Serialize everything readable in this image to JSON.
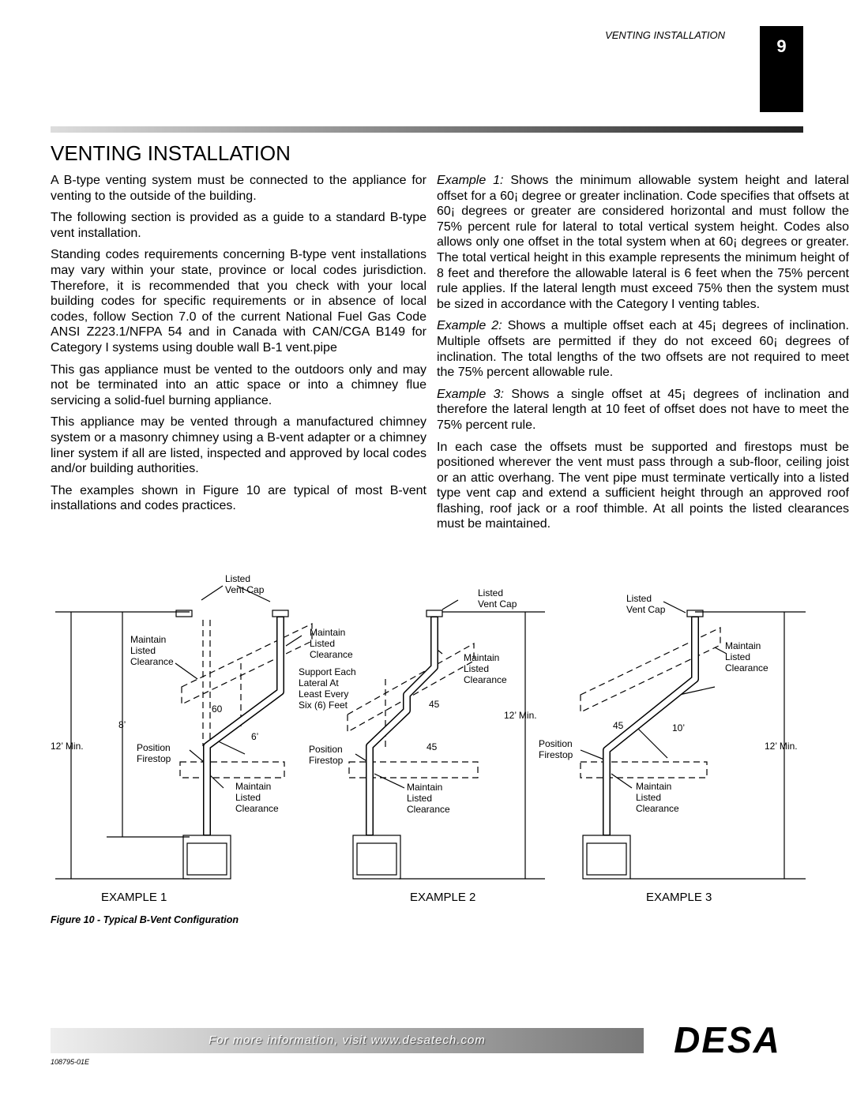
{
  "header": {
    "section": "VENTING INSTALLATION",
    "page_number": "9"
  },
  "title": "VENTING INSTALLATION",
  "left_column": [
    "A B-type venting system must be connected to the appliance for venting to the outside of the building.",
    "The following section is provided as a guide to a standard B-type vent installation.",
    "Standing codes requirements concerning B-type vent installations may vary within your state, province or local codes jurisdiction. Therefore, it is recommended that you check with your local building codes for specific requirements or in absence of local codes, follow Section 7.0 of the current National Fuel Gas Code ANSI Z223.1/NFPA 54 and in Canada with CAN/CGA B149 for Category I systems using double wall B-1 vent.pipe",
    "This gas appliance must be vented to the outdoors only and may not be terminated into an attic space or into a chimney flue servicing a solid-fuel burning appliance.",
    "This appliance may be vented through a manufactured chimney system or a masonry chimney using a B-vent adapter or a chimney liner system if all are listed, inspected and approved by local codes and/or building authorities.",
    "The examples shown in Figure 10 are typical of most B-vent installations and codes practices."
  ],
  "right_column": [
    {
      "lead": "Example 1:",
      "text": "Shows the minimum allowable system height and lateral offset for a 60¡ degree or greater inclination. Code specifies that offsets at 60¡ degrees or greater are considered horizontal and must follow the 75% percent rule for lateral to total vertical system height. Codes also allows only one offset in the total system when at 60¡ degrees or greater. The total vertical height in this example represents the minimum height of 8 feet and therefore the allowable lateral is 6 feet when the 75% percent rule applies. If the lateral length must exceed 75% then the system must be sized in accordance with the Category I venting tables."
    },
    {
      "lead": "Example 2:",
      "text": "Shows a multiple offset each at 45¡ degrees of inclination. Multiple offsets are permitted if they do not exceed 60¡ degrees of inclination. The total lengths of the two offsets are not required to meet the 75% percent allowable rule."
    },
    {
      "lead": "Example 3:",
      "text": "Shows a single offset at 45¡ degrees of inclination and therefore the lateral length at 10 feet of offset does not have to meet the 75% percent rule."
    },
    {
      "text": "In each case the offsets must be supported and firestops must be positioned wherever the vent must pass through a sub-floor, ceiling joist or an attic overhang. The vent pipe must terminate vertically into a listed type vent cap and extend a sufficient height through an approved roof flashing, roof jack or a roof thimble. At all points the listed clearances must be maintained."
    }
  ],
  "figure": {
    "labels": [
      {
        "lines": [
          "Listed",
          "Vent Cap"
        ]
      },
      {
        "lines": [
          "Maintain",
          "Listed",
          "Clearance"
        ]
      },
      {
        "lines": [
          "Maintain",
          "Listed",
          "Clearance"
        ]
      },
      {
        "lines": [
          "Support Each",
          "Lateral At",
          "Least Every",
          "Six (6) Feet"
        ]
      },
      {
        "lines": [
          "60"
        ]
      },
      {
        "lines": [
          "8’"
        ]
      },
      {
        "lines": [
          "6’"
        ]
      },
      {
        "lines": [
          "12’ Min."
        ]
      },
      {
        "lines": [
          "Position",
          "Firestop"
        ]
      },
      {
        "lines": [
          "Maintain",
          "Listed",
          "Clearance"
        ]
      },
      {
        "lines": [
          "Listed",
          "Vent Cap"
        ]
      },
      {
        "lines": [
          "Maintain",
          "Listed",
          "Clearance"
        ]
      },
      {
        "lines": [
          "45"
        ]
      },
      {
        "lines": [
          "Position",
          "Firestop"
        ]
      },
      {
        "lines": [
          "45"
        ]
      },
      {
        "lines": [
          "Maintain",
          "Listed",
          "Clearance"
        ]
      },
      {
        "lines": [
          "12’ Min."
        ]
      },
      {
        "lines": [
          "Listed",
          "Vent Cap"
        ]
      },
      {
        "lines": [
          "Maintain",
          "Listed",
          "Clearance"
        ]
      },
      {
        "lines": [
          "45"
        ]
      },
      {
        "lines": [
          "10’"
        ]
      },
      {
        "lines": [
          "Position",
          "Firestop"
        ]
      },
      {
        "lines": [
          "12’ Min."
        ]
      },
      {
        "lines": [
          "Maintain",
          "Listed",
          "Clearance"
        ]
      }
    ],
    "examples": [
      "EXAMPLE 1",
      "EXAMPLE 2",
      "EXAMPLE 3"
    ],
    "caption": "Figure 10 - Typical B-Vent Configuration"
  },
  "footer": {
    "info": "For more information, visit www.desatech.com",
    "logo": "DESA",
    "code": "108795-01E"
  }
}
